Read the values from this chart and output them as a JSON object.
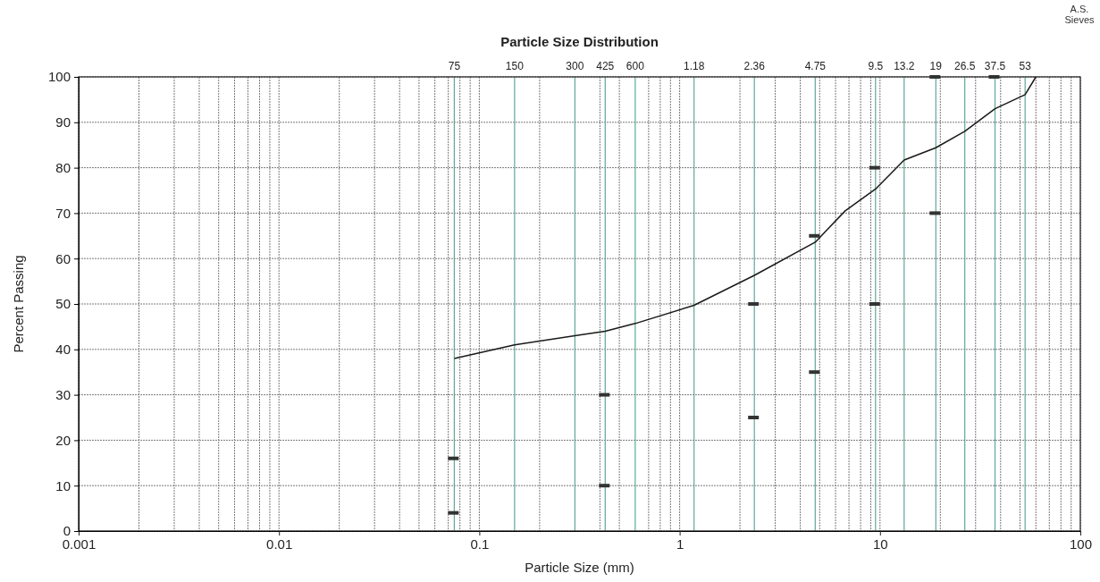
{
  "chart_data": {
    "type": "line",
    "title": "Particle Size Distribution",
    "xlabel": "Particle Size (mm)",
    "ylabel": "Percent Passing",
    "log": "x",
    "grid": true,
    "annotations": [
      "A.S. Sieves"
    ],
    "xlim": [
      0.001,
      100
    ],
    "ylim": [
      0,
      100
    ],
    "xticks": [
      0.001,
      {
        "value": 0.002,
        "label": null
      },
      {
        "value": 0.003,
        "label": null
      },
      {
        "value": 0.004,
        "label": null
      },
      {
        "value": 0.005,
        "label": null
      },
      {
        "value": 0.006,
        "label": null
      },
      {
        "value": 0.007,
        "label": null
      },
      {
        "value": 0.008,
        "label": null
      },
      {
        "value": 0.009,
        "label": null
      },
      0.01,
      {
        "value": 0.02,
        "label": null
      },
      {
        "value": 0.03,
        "label": null
      },
      {
        "value": 0.04,
        "label": null
      },
      {
        "value": 0.05,
        "label": null
      },
      {
        "value": 0.06,
        "label": null
      },
      {
        "value": 0.07,
        "label": null
      },
      {
        "value": 0.08,
        "label": null
      },
      {
        "value": 0.09,
        "label": null
      },
      0.1,
      {
        "value": 0.2,
        "label": null
      },
      {
        "value": 0.4,
        "label": null
      },
      {
        "value": 0.5,
        "label": null
      },
      {
        "value": 0.7,
        "label": null
      },
      {
        "value": 0.8,
        "label": null
      },
      {
        "value": 0.9,
        "label": null
      },
      1,
      {
        "value": 2,
        "label": null
      },
      {
        "value": 3,
        "label": null
      },
      {
        "value": 4,
        "label": null
      },
      {
        "value": 5,
        "label": null
      },
      {
        "value": 6,
        "label": null
      },
      {
        "value": 7,
        "label": null
      },
      {
        "value": 8,
        "label": null
      },
      {
        "value": 9,
        "label": null
      },
      10,
      {
        "value": 20,
        "label": null
      },
      {
        "value": 30,
        "label": null
      },
      {
        "value": 40,
        "label": null
      },
      {
        "value": 50,
        "label": null
      },
      {
        "value": 60,
        "label": null
      },
      {
        "value": 70,
        "label": null
      },
      {
        "value": 80,
        "label": null
      },
      {
        "value": 90,
        "label": null
      },
      100
    ],
    "yticks": [
      0,
      10,
      20,
      30,
      40,
      50,
      60,
      70,
      80,
      90,
      100
    ],
    "ref_lines": [
      {
        "axis": "x",
        "value": 0.075,
        "label": "75",
        "color": "#5fa89a"
      },
      {
        "axis": "x",
        "value": 0.15,
        "label": "150",
        "color": "#5fa89a"
      },
      {
        "axis": "x",
        "value": 0.3,
        "label": "300",
        "color": "#5fa89a"
      },
      {
        "axis": "x",
        "value": 0.425,
        "label": "425",
        "color": "#5fa89a"
      },
      {
        "axis": "x",
        "value": 0.6,
        "label": "600",
        "color": "#5fa89a"
      },
      {
        "axis": "x",
        "value": 1.18,
        "label": "1.18",
        "color": "#5fa89a"
      },
      {
        "axis": "x",
        "value": 2.36,
        "label": "2.36",
        "color": "#5fa89a"
      },
      {
        "axis": "x",
        "value": 4.75,
        "label": "4.75",
        "color": "#5fa89a"
      },
      {
        "axis": "x",
        "value": 9.5,
        "label": "9.5",
        "color": "#5fa89a"
      },
      {
        "axis": "x",
        "value": 13.2,
        "label": "13.2",
        "color": "#5fa89a"
      },
      {
        "axis": "x",
        "value": 19,
        "label": "19",
        "color": "#5fa89a"
      },
      {
        "axis": "x",
        "value": 26.5,
        "label": "26.5",
        "color": "#5fa89a"
      },
      {
        "axis": "x",
        "value": 37.5,
        "label": "37.5",
        "color": "#5fa89a"
      },
      {
        "axis": "x",
        "value": 53,
        "label": "53",
        "color": "#5fa89a"
      }
    ],
    "series": [
      {
        "color": "#1a1a1a",
        "marker": "none",
        "line_style": "solid",
        "x": [
          0.075,
          0.15,
          0.3,
          0.425,
          0.6,
          1.18,
          2.36,
          4.75,
          6.7,
          9.5,
          13.2,
          19,
          26.5,
          37.5,
          53,
          60
        ],
        "values": [
          38,
          41,
          43,
          44,
          45.7,
          49.7,
          56.3,
          63.6,
          70.5,
          75.3,
          81.7,
          84.4,
          88,
          93,
          96.1,
          100
        ]
      },
      {
        "type": "scatter",
        "color": "#333333",
        "marker": "square",
        "x": [
          0.075,
          0.425,
          2.36,
          4.75,
          9.5,
          19,
          37.5
        ],
        "values": [
          4,
          10,
          25,
          35,
          50,
          70,
          100
        ]
      },
      {
        "type": "scatter",
        "color": "#333333",
        "marker": "square",
        "x": [
          0.075,
          0.425,
          2.36,
          4.75,
          9.5,
          19
        ],
        "values": [
          16,
          30,
          50,
          65,
          80,
          100
        ]
      }
    ]
  }
}
